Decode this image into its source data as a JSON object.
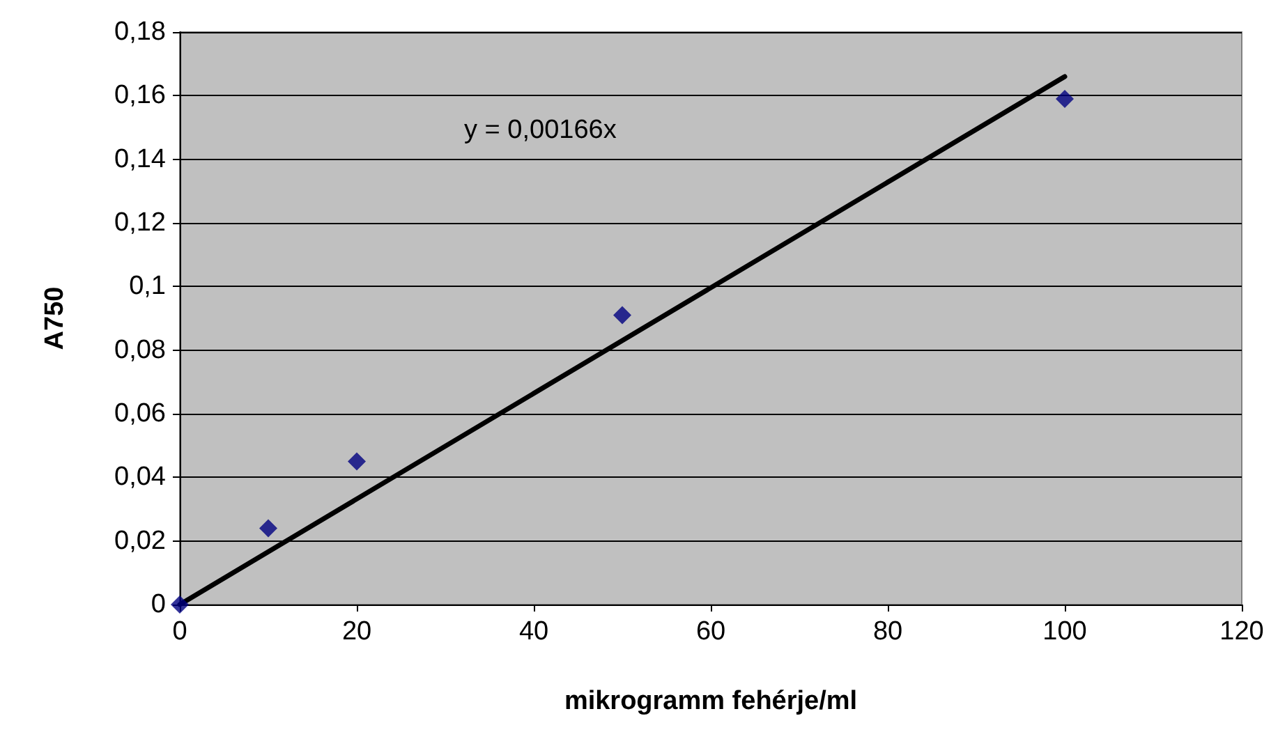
{
  "chart_data": {
    "type": "scatter",
    "xlabel": "mikrogramm fehérje/ml",
    "ylabel": "A750",
    "xlim": [
      0,
      120
    ],
    "xticks": [
      0,
      20,
      40,
      60,
      80,
      100,
      120
    ],
    "ylim": [
      0,
      0.18
    ],
    "yticks": [
      {
        "value": 0,
        "label": "0"
      },
      {
        "value": 0.02,
        "label": "0,02"
      },
      {
        "value": 0.04,
        "label": "0,04"
      },
      {
        "value": 0.06,
        "label": "0,06"
      },
      {
        "value": 0.08,
        "label": "0,08"
      },
      {
        "value": 0.1,
        "label": "0,1"
      },
      {
        "value": 0.12,
        "label": "0,12"
      },
      {
        "value": 0.14,
        "label": "0,14"
      },
      {
        "value": 0.16,
        "label": "0,16"
      },
      {
        "value": 0.18,
        "label": "0,18"
      }
    ],
    "series": [
      {
        "color": "#000080",
        "marker": "diamond",
        "x": [
          0,
          10,
          20,
          50,
          100
        ],
        "values": [
          0,
          0.024,
          0.045,
          0.091,
          0.159
        ]
      },
      {
        "type": "line",
        "color": "#000000",
        "marker": "none",
        "line_style": "solid",
        "x": [
          0,
          100
        ],
        "values": [
          0,
          0.166
        ]
      }
    ],
    "annotations": [
      "y = 0,00166x"
    ],
    "grid": "y"
  }
}
